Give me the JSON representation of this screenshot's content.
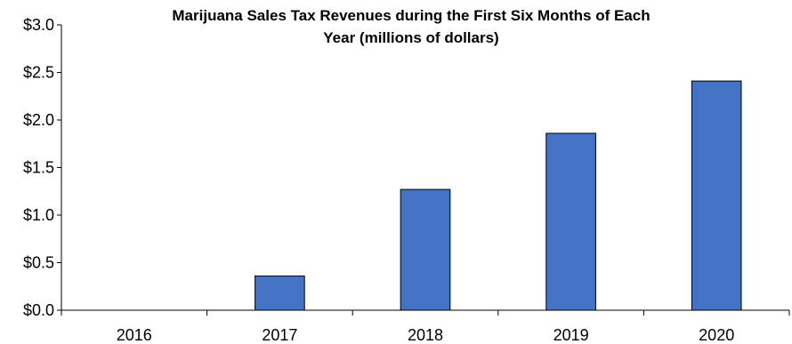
{
  "chart_data": {
    "type": "bar",
    "title_lines": [
      "Marijuana Sales Tax Revenues during the First Six Months of Each",
      "Year (millions of dollars)"
    ],
    "categories": [
      "2016",
      "2017",
      "2018",
      "2019",
      "2020"
    ],
    "values": [
      0.0,
      0.36,
      1.27,
      1.86,
      2.41
    ],
    "ylim": [
      0,
      3.0
    ],
    "yticks": [
      0.0,
      0.5,
      1.0,
      1.5,
      2.0,
      2.5,
      3.0
    ],
    "ytick_labels": [
      "$0.0",
      "$0.5",
      "$1.0",
      "$1.5",
      "$2.0",
      "$2.5",
      "$3.0"
    ],
    "xlabel": "",
    "ylabel": "",
    "grid": false,
    "legend": "none",
    "bar_color": "#4472C4"
  }
}
